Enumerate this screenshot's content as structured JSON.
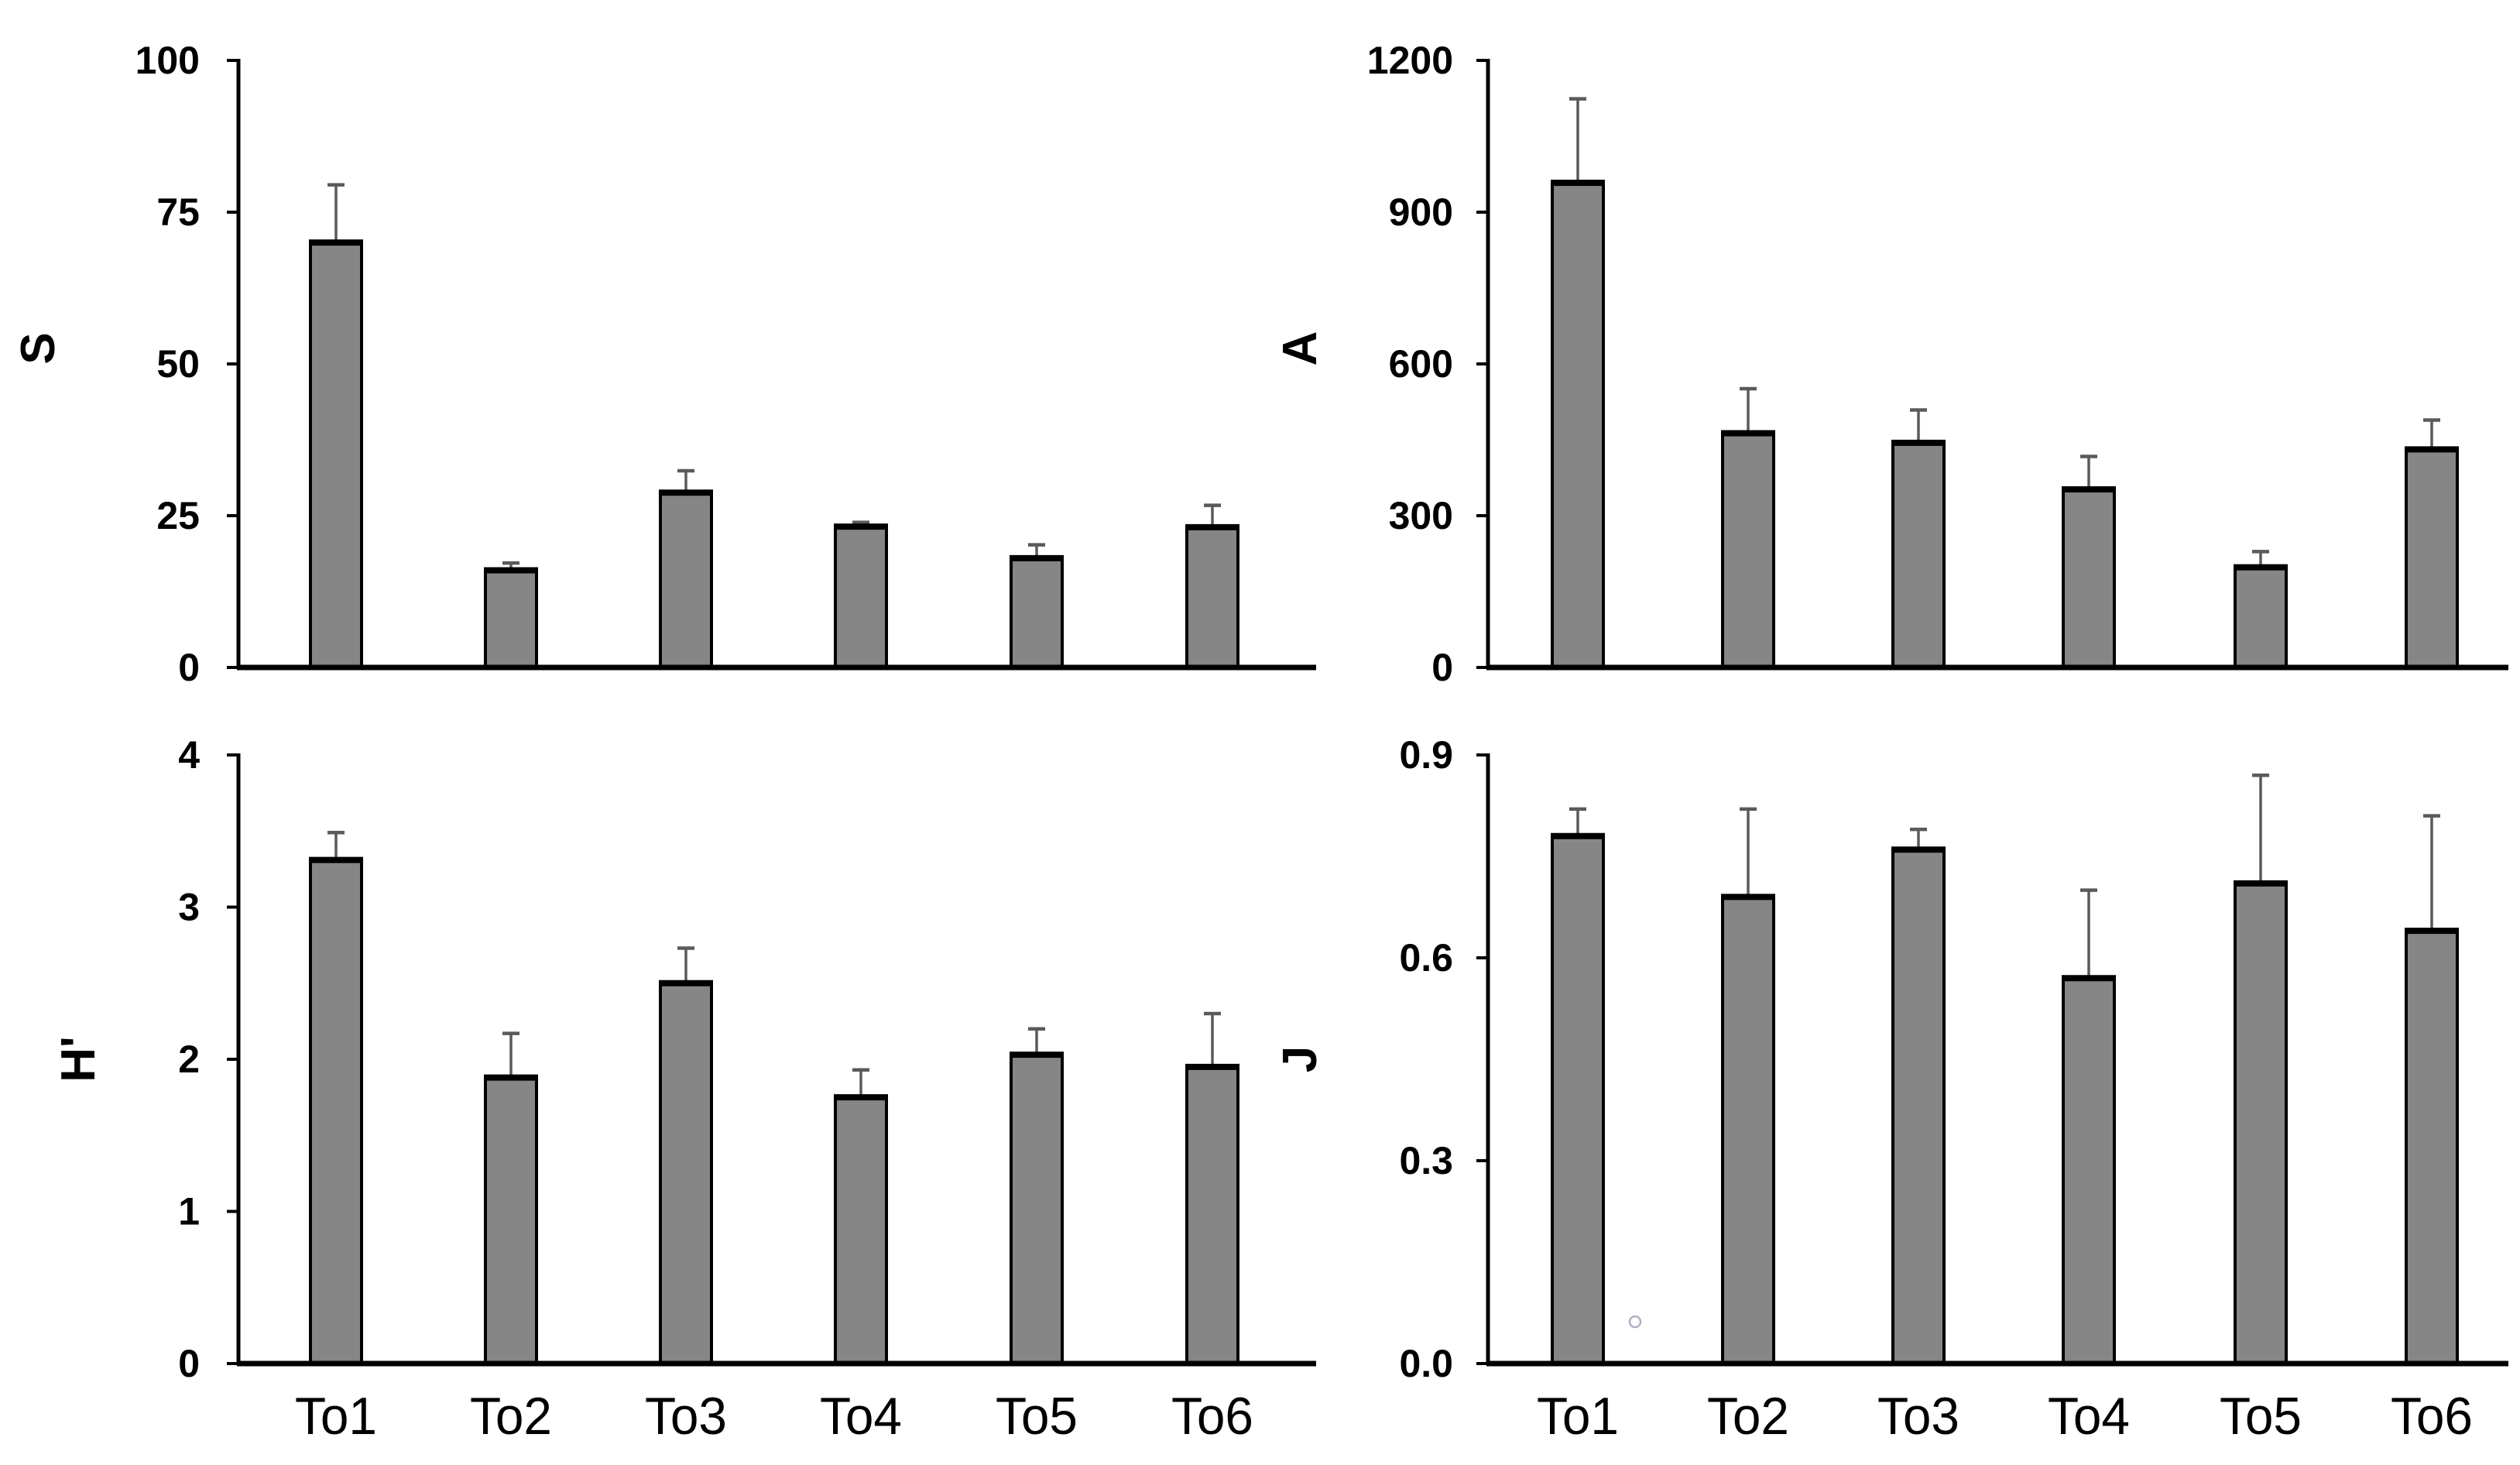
{
  "figure": {
    "description": "Four-panel bar chart figure with mean + upper error bars for six stations",
    "background": "#ffffff"
  },
  "colors": {
    "bar_fill": "#868686",
    "bar_border": "#000000",
    "error_bar": "#5a5a5a",
    "axis": "#000000",
    "tick_text": "#000000",
    "stray_ring": "#aeb1c4"
  },
  "categories": [
    "To1",
    "To2",
    "To3",
    "To4",
    "To5",
    "To6"
  ],
  "chart_data": [
    {
      "id": "S",
      "type": "bar",
      "ylabel": "S",
      "categories": [
        "To1",
        "To2",
        "To3",
        "To4",
        "To5",
        "To6"
      ],
      "values": [
        70,
        16,
        28.8,
        23.2,
        18,
        23.1
      ],
      "errors_plus": [
        9.5,
        1.2,
        3.6,
        0.7,
        2.2,
        3.6
      ],
      "ylim": [
        0,
        100
      ],
      "yticks": [
        0,
        25,
        50,
        75,
        100
      ],
      "ytick_labels": [
        "0",
        "25",
        "50",
        "75",
        "100"
      ],
      "x_tick_labels_visible": false,
      "grid": false,
      "legend": false
    },
    {
      "id": "A",
      "type": "bar",
      "ylabel": "A",
      "categories": [
        "To1",
        "To2",
        "To3",
        "To4",
        "To5",
        "To6"
      ],
      "values": [
        958,
        463,
        444,
        352,
        198,
        431
      ],
      "errors_plus": [
        166,
        88,
        65,
        65,
        31,
        58
      ],
      "ylim": [
        0,
        1200
      ],
      "yticks": [
        0,
        300,
        600,
        900,
        1200
      ],
      "ytick_labels": [
        "0",
        "300",
        "600",
        "900",
        "1200"
      ],
      "x_tick_labels_visible": false,
      "grid": false,
      "legend": false
    },
    {
      "id": "H",
      "type": "bar",
      "ylabel": "H'",
      "categories": [
        "To1",
        "To2",
        "To3",
        "To4",
        "To5",
        "To6"
      ],
      "values": [
        3.31,
        1.88,
        2.5,
        1.75,
        2.03,
        1.95
      ],
      "errors_plus": [
        0.18,
        0.29,
        0.23,
        0.18,
        0.17,
        0.35
      ],
      "ylim": [
        0,
        4
      ],
      "yticks": [
        0,
        1,
        2,
        3,
        4
      ],
      "ytick_labels": [
        "0",
        "1",
        "2",
        "3",
        "4"
      ],
      "x_tick_labels_visible": true,
      "grid": false,
      "legend": false
    },
    {
      "id": "J",
      "type": "bar",
      "ylabel": "J",
      "categories": [
        "To1",
        "To2",
        "To3",
        "To4",
        "To5",
        "To6"
      ],
      "values": [
        0.78,
        0.69,
        0.76,
        0.57,
        0.71,
        0.64
      ],
      "errors_plus": [
        0.04,
        0.13,
        0.03,
        0.13,
        0.16,
        0.17
      ],
      "ylim": [
        0,
        0.9
      ],
      "yticks": [
        0,
        0.3,
        0.6,
        0.9
      ],
      "ytick_labels": [
        "0.0",
        "0.3",
        "0.6",
        "0.9"
      ],
      "x_tick_labels_visible": true,
      "grid": false,
      "legend": false,
      "stray_marker": {
        "present": true,
        "shape": "small-ring",
        "approx_value": 0.06,
        "location": "between To1 and To2 near axis bottom"
      }
    }
  ]
}
